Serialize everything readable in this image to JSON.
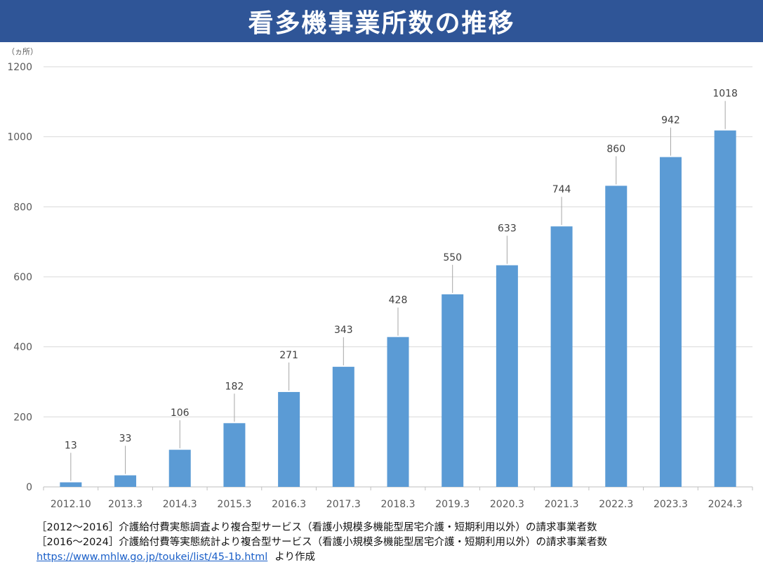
{
  "title": "看多機事業所数の推移",
  "chart_data": {
    "type": "bar",
    "unit_label": "（ヵ所）",
    "categories": [
      "2012.10",
      "2013.3",
      "2014.3",
      "2015.3",
      "2016.3",
      "2017.3",
      "2018.3",
      "2019.3",
      "2020.3",
      "2021.3",
      "2022.3",
      "2023.3",
      "2024.3"
    ],
    "values": [
      13,
      33,
      106,
      182,
      271,
      343,
      428,
      550,
      633,
      744,
      860,
      942,
      1018
    ],
    "ylim": [
      0,
      1200
    ],
    "yticks": [
      0,
      200,
      400,
      600,
      800,
      1000,
      1200
    ],
    "grid": true,
    "bar_color": "#5b9bd5",
    "label_color": "#404040"
  },
  "notes": {
    "line1": "［2012～2016］介護給付費実態調査より複合型サービス（看護小規模多機能型居宅介護・短期利用以外）の請求事業者数",
    "line2": "［2016～2024］介護給付費等実態統計より複合型サービス（看護小規模多機能型居宅介護・短期利用以外）の請求事業者数",
    "link": "https://www.mhlw.go.jp/toukei/list/45-1b.html",
    "link_suffix": "より作成"
  }
}
